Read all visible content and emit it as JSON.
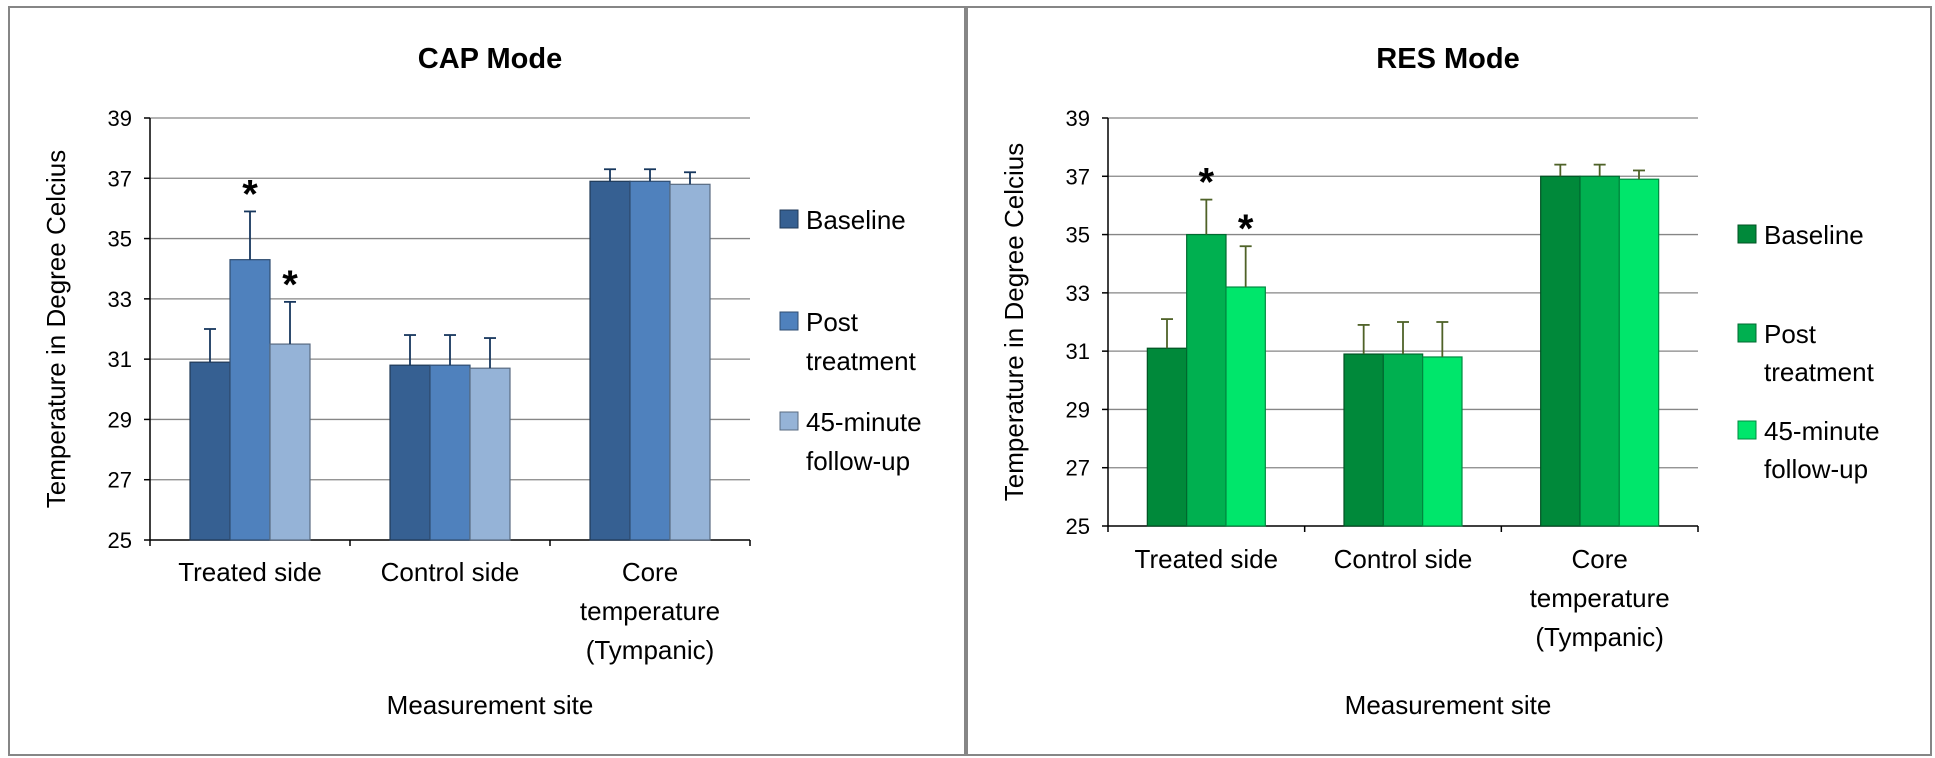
{
  "chart_data": [
    {
      "type": "bar",
      "title": "CAP Mode",
      "xlabel": "Measurement site",
      "ylabel": "Temperature in Degree Celcius",
      "ylim": [
        25,
        39
      ],
      "yticks": [
        "25",
        "27",
        "29",
        "31",
        "33",
        "35",
        "37",
        "39"
      ],
      "grid": true,
      "legend_position": "right",
      "categories": [
        [
          "Treated side"
        ],
        [
          "Control side"
        ],
        [
          "Core",
          "temperature",
          "(Tympanic)"
        ]
      ],
      "series": [
        {
          "name": [
            "Baseline"
          ],
          "color": "#366092",
          "values": [
            30.9,
            30.8,
            36.9
          ],
          "errors": [
            1.1,
            1.0,
            0.4
          ],
          "stars": [
            false,
            false,
            false
          ]
        },
        {
          "name": [
            "Post",
            "treatment"
          ],
          "color": "#4f81bd",
          "values": [
            34.3,
            30.8,
            36.9
          ],
          "errors": [
            1.6,
            1.0,
            0.4
          ],
          "stars": [
            true,
            false,
            false
          ]
        },
        {
          "name": [
            "45-minute",
            "follow-up"
          ],
          "color": "#95b3d7",
          "values": [
            31.5,
            30.7,
            36.8
          ],
          "errors": [
            1.4,
            1.0,
            0.4
          ],
          "stars": [
            true,
            false,
            false
          ]
        }
      ],
      "significance_marker": "*"
    },
    {
      "type": "bar",
      "title": "RES Mode",
      "xlabel": "Measurement site",
      "ylabel": "Temperature in Degree Celcius",
      "ylim": [
        25,
        39
      ],
      "yticks": [
        "25",
        "27",
        "29",
        "31",
        "33",
        "35",
        "37",
        "39"
      ],
      "grid": true,
      "legend_position": "right",
      "categories": [
        [
          "Treated side"
        ],
        [
          "Control side"
        ],
        [
          "Core",
          "temperature",
          "(Tympanic)"
        ]
      ],
      "series": [
        {
          "name": [
            "Baseline"
          ],
          "color": "#00893a",
          "values": [
            31.1,
            30.9,
            37.0
          ],
          "errors": [
            1.0,
            1.0,
            0.4
          ],
          "stars": [
            false,
            false,
            false
          ]
        },
        {
          "name": [
            "Post",
            "treatment"
          ],
          "color": "#00b050",
          "values": [
            35.0,
            30.9,
            37.0
          ],
          "errors": [
            1.2,
            1.1,
            0.4
          ],
          "stars": [
            true,
            false,
            false
          ]
        },
        {
          "name": [
            "45-minute",
            "follow-up"
          ],
          "color": "#00e66b",
          "values": [
            33.2,
            30.8,
            36.9
          ],
          "errors": [
            1.4,
            1.2,
            0.3
          ],
          "stars": [
            true,
            false,
            false
          ]
        }
      ],
      "significance_marker": "*"
    }
  ]
}
